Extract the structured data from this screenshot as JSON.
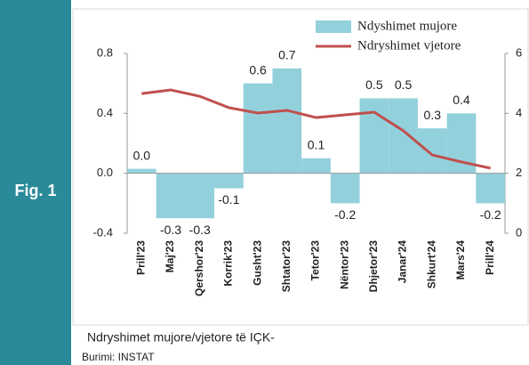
{
  "figure_label": "Fig. 1",
  "caption": "Ndryshimet mujore/vjetore të IÇK-",
  "source": "Burimi: INSTAT",
  "chart_data": {
    "type": "bar",
    "categories": [
      "Prill'23",
      "Maj'23",
      "Qershor'23",
      "Korrik'23",
      "Gusht'23",
      "Shtator'23",
      "Tetor'23",
      "Nëntor'23",
      "Dhjetor'23",
      "Janar'24",
      "Shkurt'24",
      "Mars'24",
      "Prill'24"
    ],
    "series": [
      {
        "name": "Ndyshimet mujore",
        "type": "bar",
        "color": "#92d0dc",
        "values": [
          0.03,
          -0.3,
          -0.3,
          -0.1,
          0.6,
          0.7,
          0.1,
          -0.2,
          0.5,
          0.5,
          0.3,
          0.4,
          -0.2
        ],
        "value_labels": [
          "0.0",
          "-0.3",
          "-0.3",
          "-0.1",
          "0.6",
          "0.7",
          "0.1",
          "-0.2",
          "0.5",
          "0.5",
          "0.3",
          "0.4",
          "-0.2"
        ]
      },
      {
        "name": "Ndryshimet vjetore",
        "type": "line",
        "axis": "y2",
        "color": "#c0504d",
        "values": [
          4.66,
          4.78,
          4.57,
          4.19,
          4.01,
          4.1,
          3.86,
          3.95,
          4.04,
          3.42,
          2.61,
          2.38,
          2.17
        ]
      }
    ],
    "ylim": [
      -0.4,
      0.8
    ],
    "yticks": [
      {
        "value": -0.4,
        "label": "-0.4"
      },
      {
        "value": 0,
        "label": "0.0"
      },
      {
        "value": 0.4,
        "label": "0.4"
      },
      {
        "value": 0.8,
        "label": "0.8"
      }
    ],
    "y2lim": [
      0,
      6
    ],
    "y2ticks": [
      0,
      2,
      4,
      6
    ],
    "legend": "top-right"
  }
}
